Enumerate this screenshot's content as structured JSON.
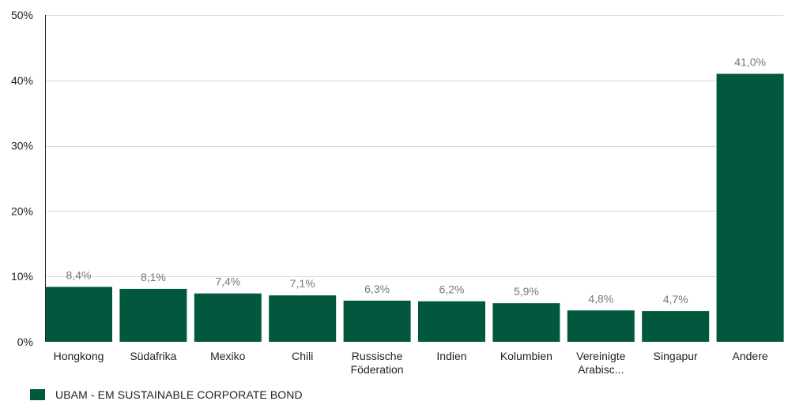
{
  "chart_data": {
    "type": "bar",
    "categories": [
      [
        "Hongkong"
      ],
      [
        "Südafrika"
      ],
      [
        "Mexiko"
      ],
      [
        "Chili"
      ],
      [
        "Russische",
        "Föderation"
      ],
      [
        "Indien"
      ],
      [
        "Kolumbien"
      ],
      [
        "Vereinigte",
        "Arabisc..."
      ],
      [
        "Singapur"
      ],
      [
        "Andere"
      ]
    ],
    "series": [
      {
        "name": "UBAM - EM SUSTAINABLE CORPORATE BOND",
        "values": [
          8.4,
          8.1,
          7.4,
          7.1,
          6.3,
          6.2,
          5.9,
          4.8,
          4.7,
          41.0
        ],
        "data_labels": [
          "8,4%",
          "8,1%",
          "7,4%",
          "7,1%",
          "6,3%",
          "6,2%",
          "5,9%",
          "4,8%",
          "4,7%",
          "41,0%"
        ]
      }
    ],
    "ylim": [
      0,
      50
    ],
    "yticks": [
      0,
      10,
      20,
      30,
      40,
      50
    ],
    "ytick_labels": [
      "0%",
      "10%",
      "20%",
      "30%",
      "40%",
      "50%"
    ],
    "grid": true,
    "legend_position": "bottom-left",
    "bar_color": "#02583f"
  }
}
